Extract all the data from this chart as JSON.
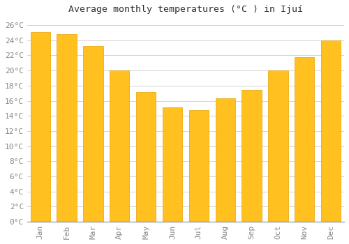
{
  "title": "Average monthly temperatures (°C ) in Ijuí",
  "months": [
    "Jan",
    "Feb",
    "Mar",
    "Apr",
    "May",
    "Jun",
    "Jul",
    "Aug",
    "Sep",
    "Oct",
    "Nov",
    "Dec"
  ],
  "values": [
    25.1,
    24.8,
    23.2,
    20.0,
    17.2,
    15.1,
    14.8,
    16.3,
    17.4,
    20.0,
    21.8,
    24.0
  ],
  "bar_color": "#FFC020",
  "bar_edge_color": "#E8A000",
  "background_color": "#FFFFFF",
  "plot_bg_color": "#FFFFFF",
  "grid_color": "#CCCCCC",
  "ylim": [
    0,
    27
  ],
  "yticks": [
    0,
    2,
    4,
    6,
    8,
    10,
    12,
    14,
    16,
    18,
    20,
    22,
    24,
    26
  ],
  "title_fontsize": 9.5,
  "tick_fontsize": 8,
  "tick_color": "#888888",
  "title_color": "#333333"
}
